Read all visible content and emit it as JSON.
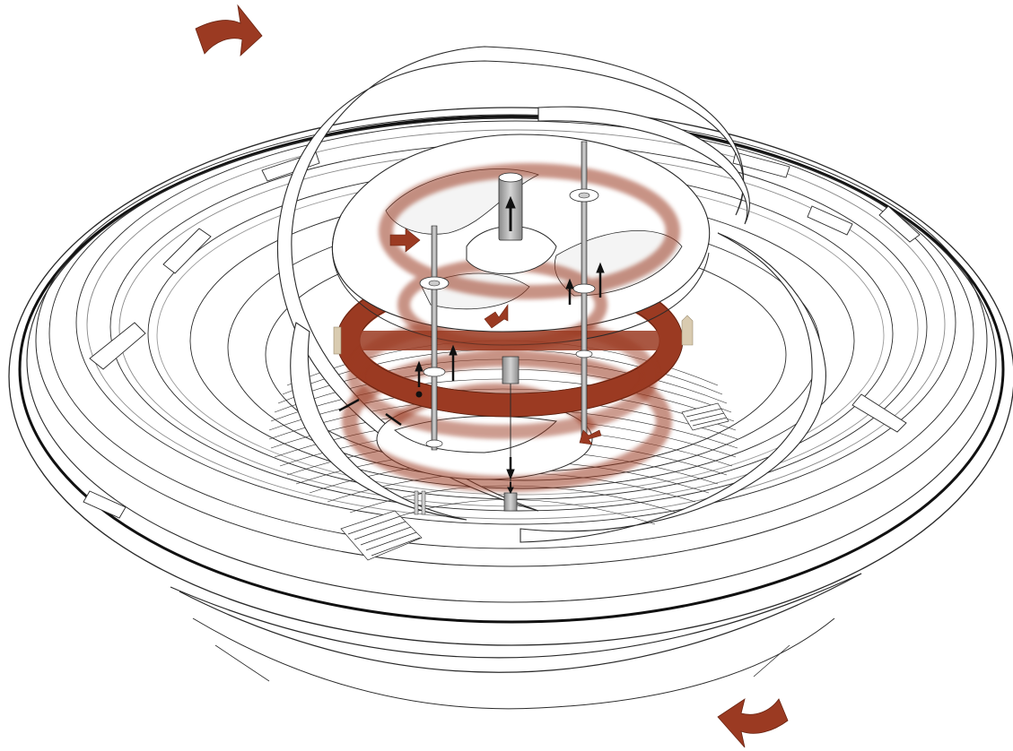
{
  "diagram": {
    "style": "exploded axonometric line drawing",
    "colors": {
      "background": "#ffffff",
      "line": "#2a2a2a",
      "fill": "#ffffff",
      "accent": "#9b3a22",
      "accent_light": "#c88a76",
      "post": "#b0b0b0",
      "beige": "#d9cbb0"
    },
    "icons": [
      "rotation-arrow-icon",
      "circulation-arrow-icon",
      "vertical-flow-arrow-icon"
    ]
  }
}
